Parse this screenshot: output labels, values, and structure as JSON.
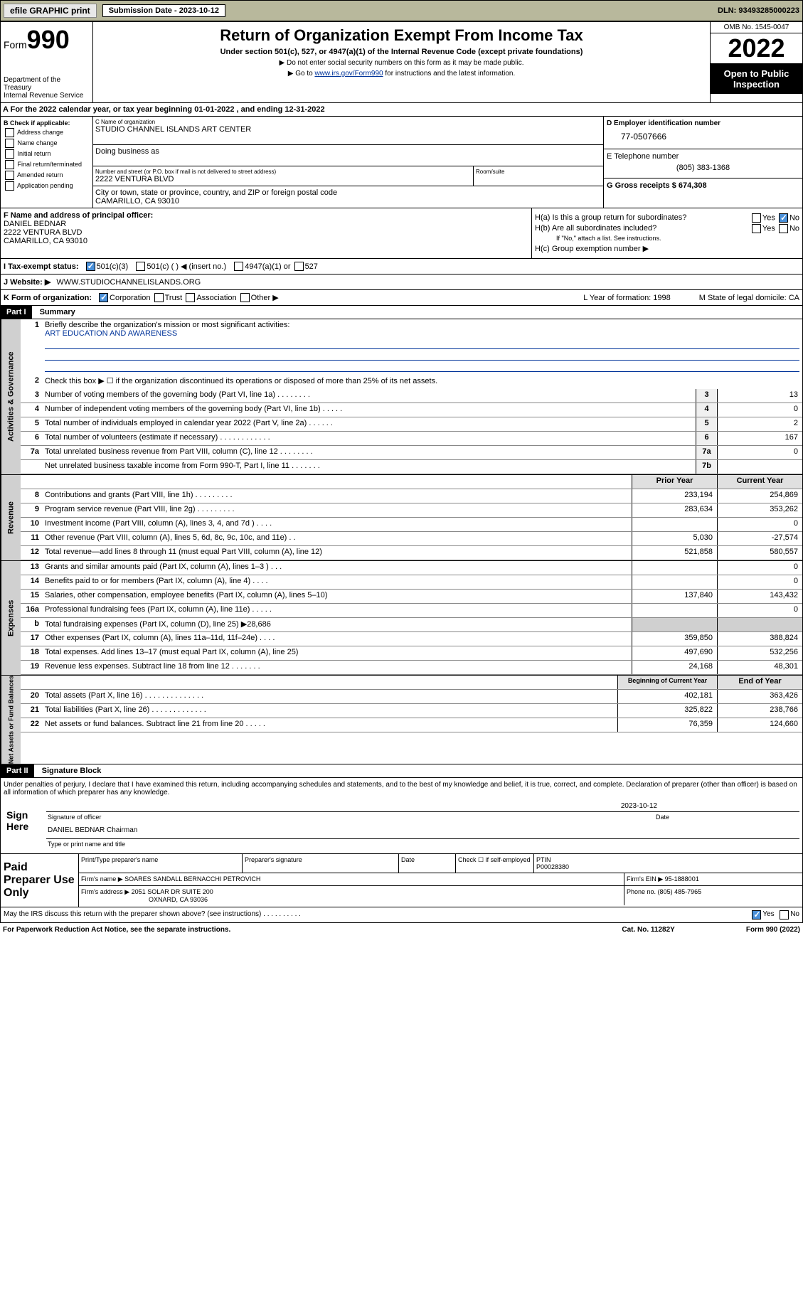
{
  "top": {
    "efile": "efile GRAPHIC print",
    "sub_label": "Submission Date - 2023-10-12",
    "dln": "DLN: 93493285000223"
  },
  "header": {
    "form_word": "Form",
    "form_num": "990",
    "dept": "Department of the Treasury",
    "irs": "Internal Revenue Service",
    "title": "Return of Organization Exempt From Income Tax",
    "sub": "Under section 501(c), 527, or 4947(a)(1) of the Internal Revenue Code (except private foundations)",
    "note1": "▶ Do not enter social security numbers on this form as it may be made public.",
    "note2_pre": "▶ Go to ",
    "note2_link": "www.irs.gov/Form990",
    "note2_post": " for instructions and the latest information.",
    "omb": "OMB No. 1545-0047",
    "year": "2022",
    "public": "Open to Public Inspection"
  },
  "periodA": "For the 2022 calendar year, or tax year beginning 01-01-2022   , and ending 12-31-2022",
  "boxB": {
    "title": "B Check if applicable:",
    "items": [
      "Address change",
      "Name change",
      "Initial return",
      "Final return/terminated",
      "Amended return",
      "Application pending"
    ]
  },
  "boxC": {
    "name_lbl": "C Name of organization",
    "name": "STUDIO CHANNEL ISLANDS ART CENTER",
    "dba_lbl": "Doing business as",
    "addr_lbl": "Number and street (or P.O. box if mail is not delivered to street address)",
    "room_lbl": "Room/suite",
    "addr": "2222 VENTURA BLVD",
    "city_lbl": "City or town, state or province, country, and ZIP or foreign postal code",
    "city": "CAMARILLO, CA  93010"
  },
  "boxD": {
    "lbl": "D Employer identification number",
    "val": "77-0507666"
  },
  "boxE": {
    "lbl": "E Telephone number",
    "val": "(805) 383-1368"
  },
  "boxG": {
    "lbl": "G Gross receipts $",
    "val": "674,308"
  },
  "boxF": {
    "lbl": "F Name and address of principal officer:",
    "name": "DANIEL BEDNAR",
    "addr1": "2222 VENTURA BLVD",
    "addr2": "CAMARILLO, CA  93010"
  },
  "boxH": {
    "a": "H(a)  Is this a group return for subordinates?",
    "b": "H(b)  Are all subordinates included?",
    "b_note": "If \"No,\" attach a list. See instructions.",
    "c": "H(c)  Group exemption number ▶",
    "yes": "Yes",
    "no": "No"
  },
  "rowI": {
    "lbl": "I  Tax-exempt status:",
    "o1": "501(c)(3)",
    "o2": "501(c) (  ) ◀ (insert no.)",
    "o3": "4947(a)(1) or",
    "o4": "527"
  },
  "rowJ": {
    "lbl": "J  Website: ▶",
    "val": "WWW.STUDIOCHANNELISLANDS.ORG"
  },
  "rowK": {
    "lbl": "K Form of organization:",
    "o1": "Corporation",
    "o2": "Trust",
    "o3": "Association",
    "o4": "Other ▶",
    "l": "L Year of formation: 1998",
    "m": "M State of legal domicile: CA"
  },
  "part1": {
    "hdr": "Part I",
    "title": "Summary"
  },
  "summary": {
    "q1": "Briefly describe the organization's mission or most significant activities:",
    "mission": "ART EDUCATION AND AWARENESS",
    "q2": "Check this box ▶ ☐  if the organization discontinued its operations or disposed of more than 25% of its net assets.",
    "rows_gov": [
      {
        "n": "3",
        "d": "Number of voting members of the governing body (Part VI, line 1a)   .    .    .    .    .    .    .    .",
        "nc": "3",
        "v": "13"
      },
      {
        "n": "4",
        "d": "Number of independent voting members of the governing body (Part VI, line 1b)   .    .    .    .    .",
        "nc": "4",
        "v": "0"
      },
      {
        "n": "5",
        "d": "Total number of individuals employed in calendar year 2022 (Part V, line 2a)   .    .    .    .    .    .",
        "nc": "5",
        "v": "2"
      },
      {
        "n": "6",
        "d": "Total number of volunteers (estimate if necessary)   .    .    .    .    .    .    .    .    .    .    .    .",
        "nc": "6",
        "v": "167"
      },
      {
        "n": "7a",
        "d": "Total unrelated business revenue from Part VIII, column (C), line 12   .    .    .    .    .    .    .    .",
        "nc": "7a",
        "v": "0"
      },
      {
        "n": "",
        "d": "Net unrelated business taxable income from Form 990-T, Part I, line 11   .    .    .    .    .    .    .",
        "nc": "7b",
        "v": ""
      }
    ],
    "py": "Prior Year",
    "cy": "Current Year",
    "rows_rev": [
      {
        "n": "8",
        "d": "Contributions and grants (Part VIII, line 1h)   .    .    .    .    .    .    .    .    .",
        "p": "233,194",
        "c": "254,869"
      },
      {
        "n": "9",
        "d": "Program service revenue (Part VIII, line 2g)   .    .    .    .    .    .    .    .    .",
        "p": "283,634",
        "c": "353,262"
      },
      {
        "n": "10",
        "d": "Investment income (Part VIII, column (A), lines 3, 4, and 7d )   .    .    .    .",
        "p": "",
        "c": "0"
      },
      {
        "n": "11",
        "d": "Other revenue (Part VIII, column (A), lines 5, 6d, 8c, 9c, 10c, and 11e)   .    .",
        "p": "5,030",
        "c": "-27,574"
      },
      {
        "n": "12",
        "d": "Total revenue—add lines 8 through 11 (must equal Part VIII, column (A), line 12)",
        "p": "521,858",
        "c": "580,557"
      }
    ],
    "rows_exp": [
      {
        "n": "13",
        "d": "Grants and similar amounts paid (Part IX, column (A), lines 1–3 )   .    .    .",
        "p": "",
        "c": "0"
      },
      {
        "n": "14",
        "d": "Benefits paid to or for members (Part IX, column (A), line 4)   .    .    .    .",
        "p": "",
        "c": "0"
      },
      {
        "n": "15",
        "d": "Salaries, other compensation, employee benefits (Part IX, column (A), lines 5–10)",
        "p": "137,840",
        "c": "143,432"
      },
      {
        "n": "16a",
        "d": "Professional fundraising fees (Part IX, column (A), line 11e)   .    .    .    .    .",
        "p": "",
        "c": "0"
      },
      {
        "n": "b",
        "d": "Total fundraising expenses (Part IX, column (D), line 25) ▶28,686",
        "p": "",
        "c": ""
      },
      {
        "n": "17",
        "d": "Other expenses (Part IX, column (A), lines 11a–11d, 11f–24e)   .    .    .    .",
        "p": "359,850",
        "c": "388,824"
      },
      {
        "n": "18",
        "d": "Total expenses. Add lines 13–17 (must equal Part IX, column (A), line 25)",
        "p": "497,690",
        "c": "532,256"
      },
      {
        "n": "19",
        "d": "Revenue less expenses. Subtract line 18 from line 12   .    .    .    .    .    .    .",
        "p": "24,168",
        "c": "48,301"
      }
    ],
    "by": "Beginning of Current Year",
    "ey": "End of Year",
    "rows_net": [
      {
        "n": "20",
        "d": "Total assets (Part X, line 16)   .    .    .    .    .    .    .    .    .    .    .    .    .    .",
        "p": "402,181",
        "c": "363,426"
      },
      {
        "n": "21",
        "d": "Total liabilities (Part X, line 26)   .    .    .    .    .    .    .    .    .    .    .    .    .",
        "p": "325,822",
        "c": "238,766"
      },
      {
        "n": "22",
        "d": "Net assets or fund balances. Subtract line 21 from line 20   .    .    .    .    .",
        "p": "76,359",
        "c": "124,660"
      }
    ],
    "vlabels": {
      "gov": "Activities & Governance",
      "rev": "Revenue",
      "exp": "Expenses",
      "net": "Net Assets or Fund Balances"
    }
  },
  "part2": {
    "hdr": "Part II",
    "title": "Signature Block"
  },
  "sig": {
    "decl": "Under penalties of perjury, I declare that I have examined this return, including accompanying schedules and statements, and to the best of my knowledge and belief, it is true, correct, and complete. Declaration of preparer (other than officer) is based on all information of which preparer has any knowledge.",
    "here": "Sign Here",
    "date": "2023-10-12",
    "sig_officer": "Signature of officer",
    "date_lbl": "Date",
    "name": "DANIEL BEDNAR  Chairman",
    "name_lbl": "Type or print name and title"
  },
  "prep": {
    "title": "Paid Preparer Use Only",
    "h1": "Print/Type preparer's name",
    "h2": "Preparer's signature",
    "h3": "Date",
    "h4": "Check ☐ if self-employed",
    "h5": "PTIN",
    "ptin": "P00028380",
    "firm_lbl": "Firm's name    ▶",
    "firm": "SOARES SANDALL BERNACCHI PETROVICH",
    "ein_lbl": "Firm's EIN ▶",
    "ein": "95-1888001",
    "addr_lbl": "Firm's address ▶",
    "addr1": "2051 SOLAR DR SUITE 200",
    "addr2": "OXNARD, CA  93036",
    "phone_lbl": "Phone no.",
    "phone": "(805) 485-7965"
  },
  "footer": {
    "discuss": "May the IRS discuss this return with the preparer shown above? (see instructions)   .    .    .    .    .    .    .    .    .    .",
    "yes": "Yes",
    "no": "No",
    "paperwork": "For Paperwork Reduction Act Notice, see the separate instructions.",
    "cat": "Cat. No. 11282Y",
    "form": "Form 990 (2022)"
  }
}
